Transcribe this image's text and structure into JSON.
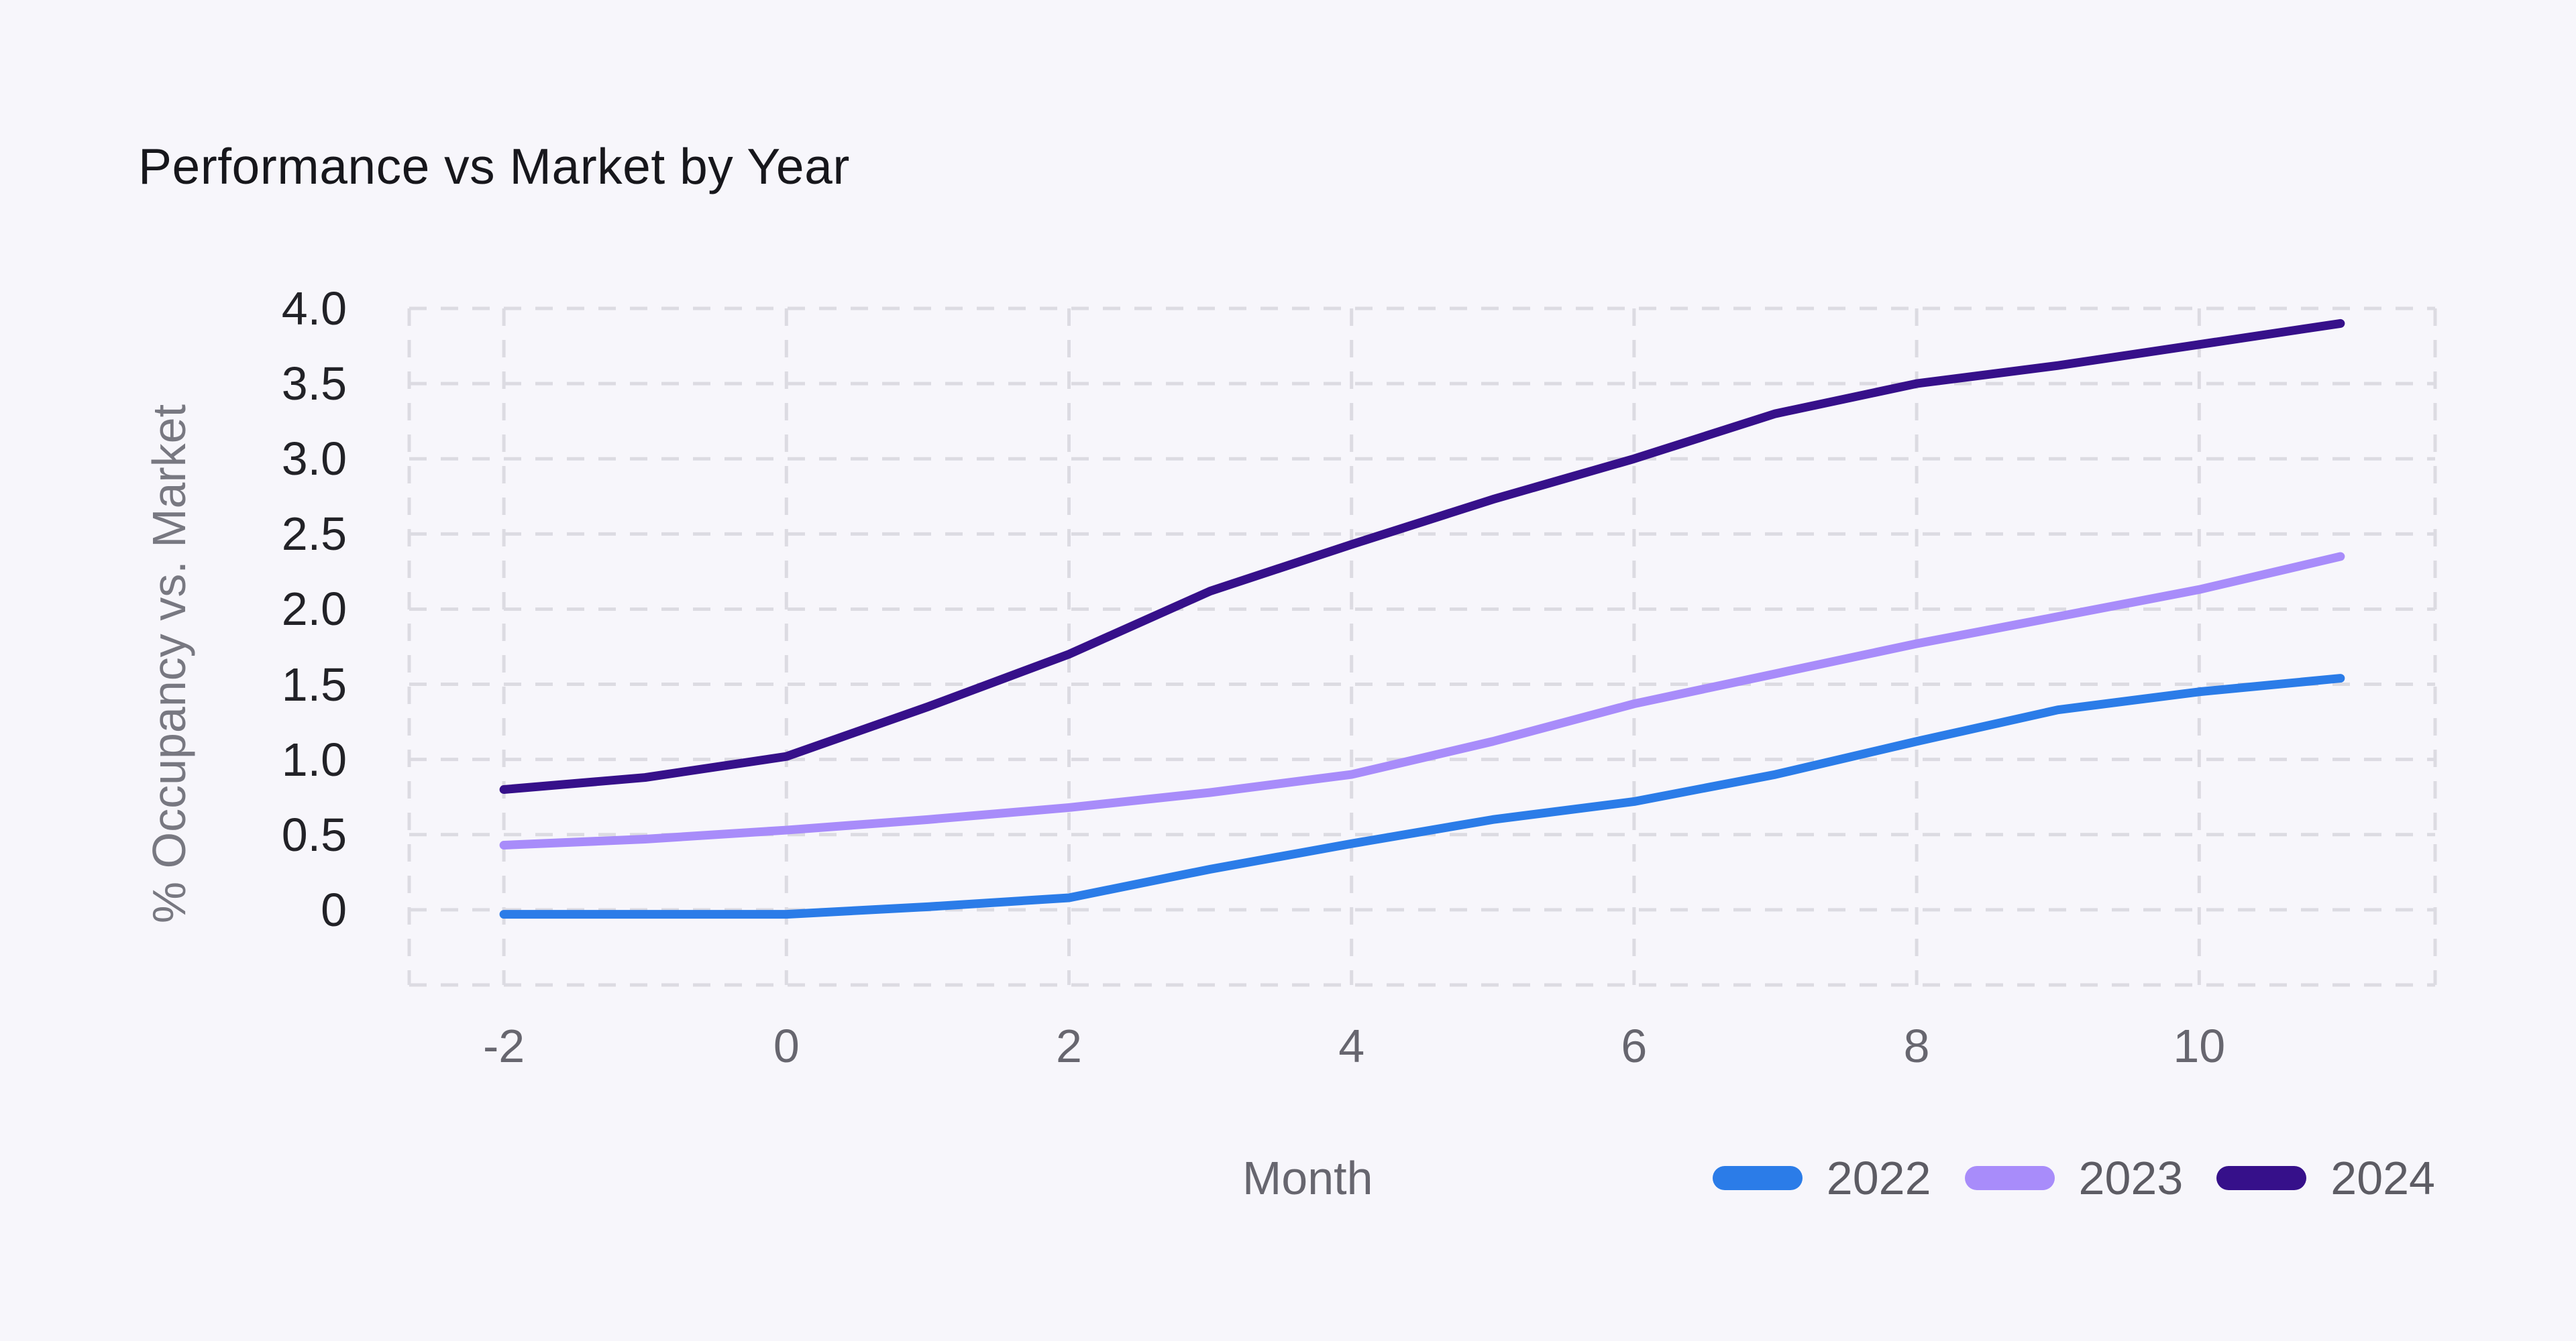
{
  "page": {
    "background": "#f7f6fb"
  },
  "header": {
    "title": "Performance vs Market by Year"
  },
  "axes": {
    "y_title": "% Occupancy vs. Market",
    "x_title": "Month"
  },
  "chart_data": {
    "type": "line",
    "title": "Performance vs Market by Year",
    "xlabel": "Month",
    "ylabel": "% Occupancy vs. Market",
    "x": [
      -2,
      -1,
      0,
      1,
      2,
      3,
      4,
      5,
      6,
      7,
      8,
      9,
      10,
      11
    ],
    "series": [
      {
        "name": "2022",
        "color": "#2b7ce8",
        "values": [
          -0.03,
          -0.03,
          -0.03,
          0.02,
          0.08,
          0.27,
          0.44,
          0.6,
          0.72,
          0.9,
          1.12,
          1.33,
          1.45,
          1.54
        ]
      },
      {
        "name": "2023",
        "color": "#a88cfa",
        "values": [
          0.43,
          0.47,
          0.53,
          0.6,
          0.68,
          0.78,
          0.9,
          1.12,
          1.37,
          1.57,
          1.77,
          1.95,
          2.13,
          2.35
        ]
      },
      {
        "name": "2024",
        "color": "#36108a",
        "values": [
          0.8,
          0.88,
          1.02,
          1.35,
          1.7,
          2.12,
          2.43,
          2.73,
          3.0,
          3.3,
          3.5,
          3.62,
          3.76,
          3.9
        ]
      }
    ],
    "x_ticks": [
      {
        "value": -2,
        "label": "-2"
      },
      {
        "value": 0,
        "label": "0"
      },
      {
        "value": 2,
        "label": "2"
      },
      {
        "value": 4,
        "label": "4"
      },
      {
        "value": 6,
        "label": "6"
      },
      {
        "value": 8,
        "label": "8"
      },
      {
        "value": 10,
        "label": "10"
      }
    ],
    "y_ticks": [
      {
        "value": 0,
        "label": "0"
      },
      {
        "value": 0.5,
        "label": "0.5"
      },
      {
        "value": 1,
        "label": "1.0"
      },
      {
        "value": 1.5,
        "label": "1.5"
      },
      {
        "value": 2,
        "label": "2.0"
      },
      {
        "value": 2.5,
        "label": "2.5"
      },
      {
        "value": 3,
        "label": "3.0"
      },
      {
        "value": 3.5,
        "label": "3.5"
      },
      {
        "value": 4,
        "label": "4.0"
      }
    ],
    "xlim": [
      -2.67,
      11.67
    ],
    "ylim": [
      -0.5,
      4.0
    ],
    "grid": true,
    "grid_style": "dashed",
    "grid_color": "#dcdbe2",
    "legend": [
      "2022",
      "2023",
      "2024"
    ],
    "legend_position": "bottom-right"
  }
}
